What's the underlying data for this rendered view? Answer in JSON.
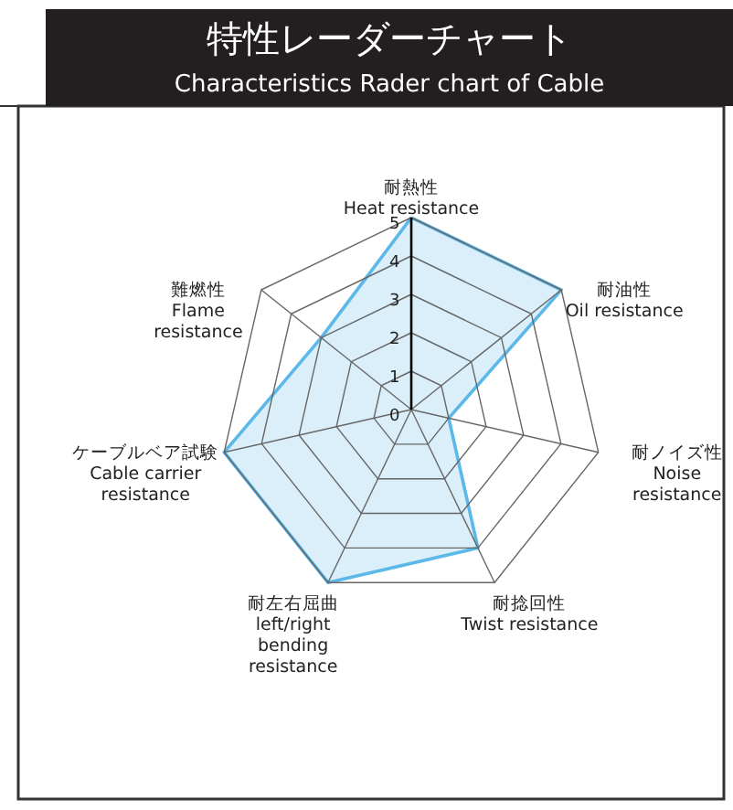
{
  "chart_data": {
    "type": "radar",
    "title": "特性レーダーチャート",
    "subtitle": "Characteristics Rader chart of Cable",
    "categories": [
      "耐熱性\nHeat resistance",
      "耐油性\nOil resistance",
      "耐ノイズ性\nNoise\nresistance",
      "耐捻回性\nTwist resistance",
      "耐左右屈曲\nleft/right\nbending\nresistance",
      "ケーブルベア試験\nCable carrier\nresistance",
      "難燃性\nFlame\nresistance"
    ],
    "series": [
      {
        "color": "#5bb8e8",
        "values": [
          5,
          5,
          1,
          4,
          5,
          5,
          3
        ]
      }
    ],
    "ylim": [
      0,
      5
    ],
    "yticks": [
      0,
      1,
      2,
      3,
      4,
      5
    ],
    "grid": true
  }
}
